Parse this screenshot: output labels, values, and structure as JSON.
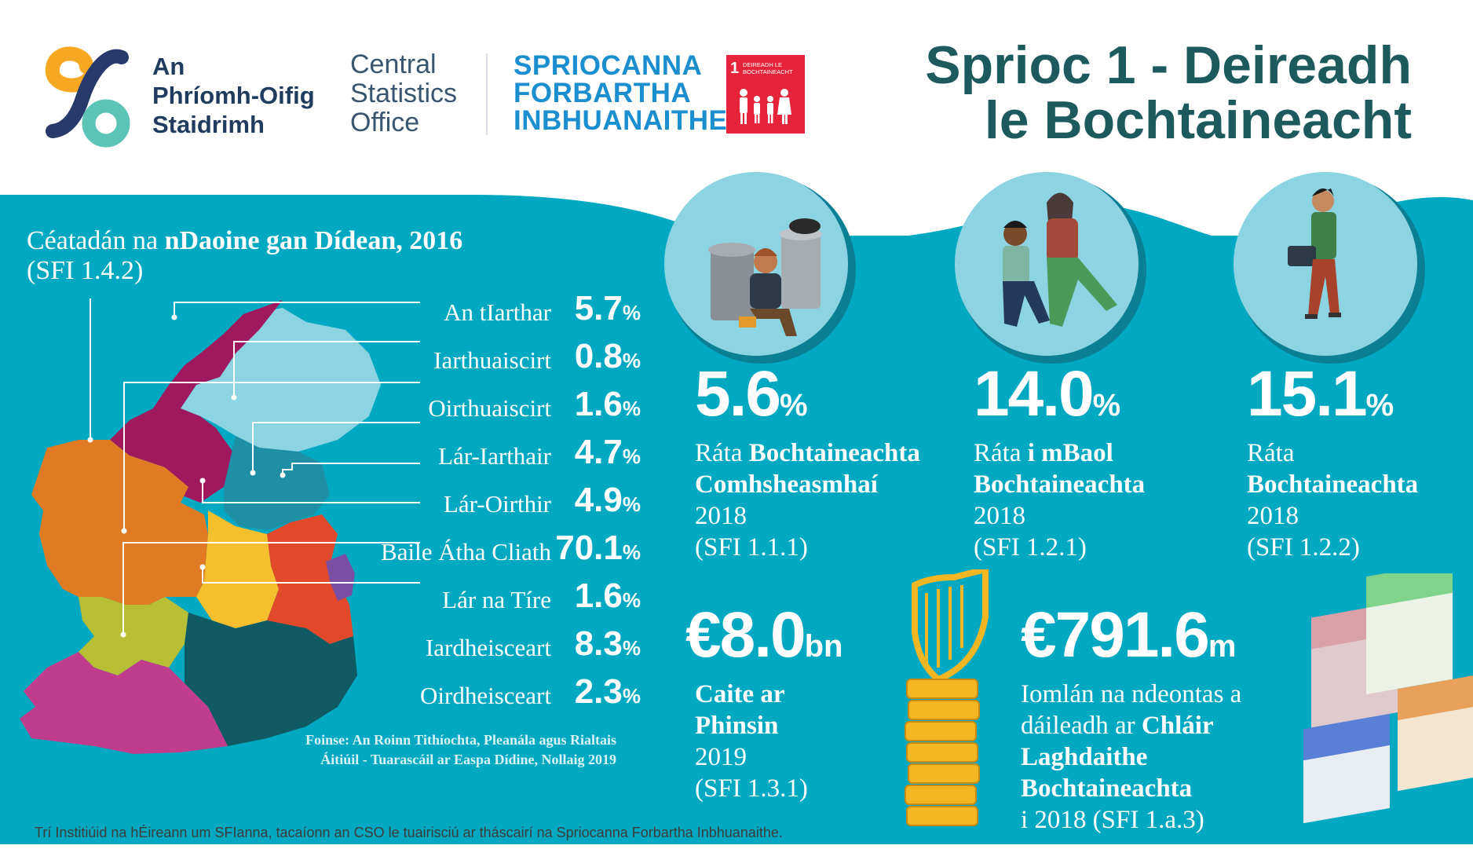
{
  "header": {
    "logo_line1": "An",
    "logo_line2": "Phríomh-Oifig",
    "logo_line3": "Staidrimh",
    "cso_line1": "Central",
    "cso_line2": "Statistics",
    "cso_line3": "Office",
    "sdg_line1": "SPRIOCANNA",
    "sdg_line2": "FORBARTHA",
    "sdg_line3": "INBHUANAITHE",
    "badge_number": "1",
    "badge_line1": "DEIREADH LE",
    "badge_line2": "BOCHTAINEACHT",
    "title_line1": "Sprioc 1 - Deireadh",
    "title_line2": "le Bochtaineacht"
  },
  "map": {
    "title_regular": "Céatadán na ",
    "title_bold": "nDaoine gan Dídean, 2016",
    "subtitle": "(SFI 1.4.2)",
    "regions": [
      {
        "name": "An tIarthar",
        "value": "5.7",
        "color": "#e07b24"
      },
      {
        "name": "Iarthuaiscirt",
        "value": "0.8",
        "color": "#a0185e"
      },
      {
        "name": "Oirthuaiscirt",
        "value": "1.6",
        "color": "#1f8fa6"
      },
      {
        "name": "Lár-Iarthair",
        "value": "4.7",
        "color": "#b7bf34"
      },
      {
        "name": "Lár-Oirthir",
        "value": "4.9",
        "color": "#e2492a"
      },
      {
        "name": "Baile Átha Cliath",
        "value": "70.1",
        "color": "#7a4fa3"
      },
      {
        "name": "Lár na Tíre",
        "value": "1.6",
        "color": "#f7bf2d"
      },
      {
        "name": "Iardheisceart",
        "value": "8.3",
        "color": "#c03d8e"
      },
      {
        "name": "Oirdheisceart",
        "value": "2.3",
        "color": "#0f5a63"
      }
    ],
    "unit": "%",
    "source_line1": "Foinse:  An Roinn Tithíochta, Pleanála agus Rialtais",
    "source_line2": "Áitiúil - Tuarascáil ar Easpa Dídine, Nollaig 2019"
  },
  "stats": {
    "s1": {
      "value": "5.6",
      "unit": "%",
      "l1": "Ráta ",
      "l1b": "Bochtaineachta",
      "l2b": "Comhsheasmhaí",
      "year": "2018",
      "ref": "(SFI 1.1.1)"
    },
    "s2": {
      "value": "14.0",
      "unit": "%",
      "l1": "Ráta ",
      "l1b": "i mBaol",
      "l2b": "Bochtaineachta",
      "year": "2018",
      "ref": "(SFI 1.2.1)"
    },
    "s3": {
      "value": "15.1",
      "unit": "%",
      "l1": "Ráta",
      "l2b": "Bochtaineachta",
      "year": "2018",
      "ref": "(SFI 1.2.2)"
    },
    "s4": {
      "value": "€8.0",
      "unit": "bn",
      "l1b": "Caite ar",
      "l2b": "Phinsin",
      "year": "2019",
      "ref": "(SFI 1.3.1)"
    },
    "s5": {
      "value": "€791.6",
      "unit": "m",
      "l1": "Iomlán na ndeontas a",
      "l2": "dáileadh ar ",
      "l2b": "Chláir",
      "l3b": "Laghdaithe",
      "l4b": "Bochtaineachta",
      "l5": "i 2018 (SFI 1.a.3)"
    }
  },
  "footer": "Trí Institiúid na hÉireann um SFIanna, tacaíonn an CSO le tuairisciú ar tháscairí na Spriocanna Forbartha Inbhuanaithe.",
  "colors": {
    "teal": "#00a9c1",
    "title": "#1c5a5e",
    "sdg_red": "#e5243b",
    "sdg_blue": "#1b8ed0"
  }
}
